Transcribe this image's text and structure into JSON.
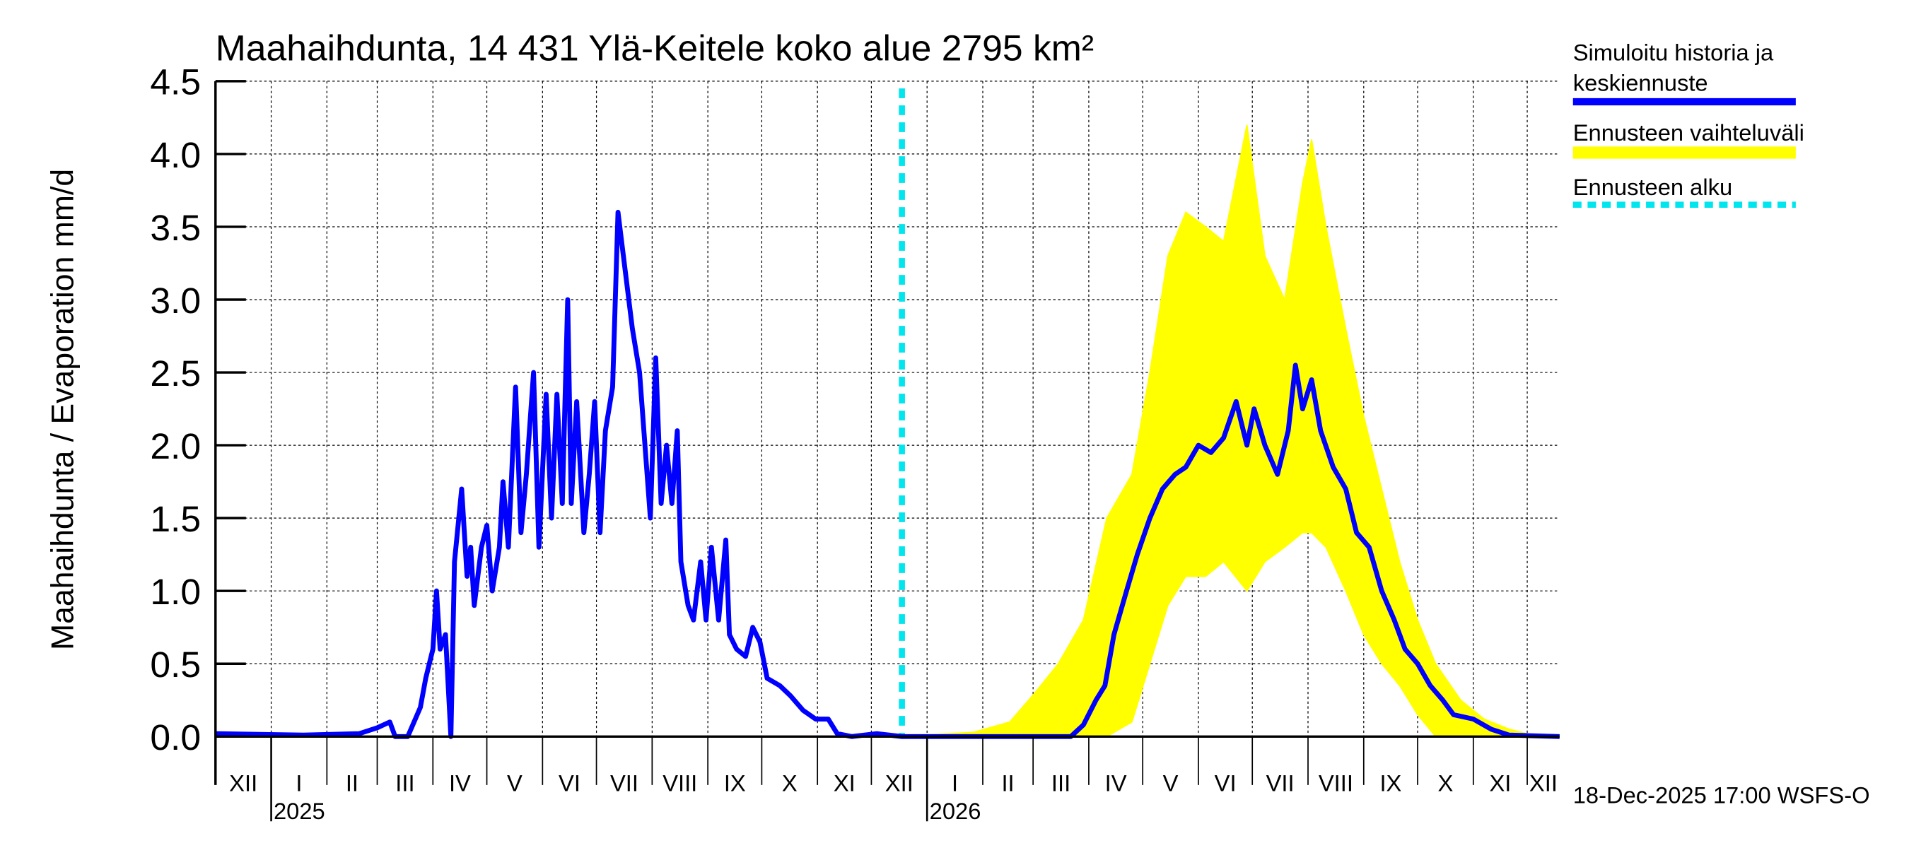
{
  "chart_data": {
    "type": "line",
    "title": "Maahaihdunta, 14 431 Ylä-Keitele koko alue 2795 km²",
    "ylabel": "Maahaihdunta / Evaporation   mm/d",
    "xlabel": "",
    "x_unit": "days since 2024-12-01",
    "xlim": [
      0,
      748
    ],
    "ylim": [
      0,
      4.5
    ],
    "yticks": [
      0.0,
      0.5,
      1.0,
      1.5,
      2.0,
      2.5,
      3.0,
      3.5,
      4.0,
      4.5
    ],
    "ytick_labels": [
      "0.0",
      "0.5",
      "1.0",
      "1.5",
      "2.0",
      "2.5",
      "3.0",
      "3.5",
      "4.0",
      "4.5"
    ],
    "grid": true,
    "months": [
      {
        "label": "XII",
        "start": 0
      },
      {
        "label": "I",
        "start": 31
      },
      {
        "label": "II",
        "start": 62
      },
      {
        "label": "III",
        "start": 90
      },
      {
        "label": "IV",
        "start": 121
      },
      {
        "label": "V",
        "start": 151
      },
      {
        "label": "VI",
        "start": 182
      },
      {
        "label": "VII",
        "start": 212
      },
      {
        "label": "VIII",
        "start": 243
      },
      {
        "label": "IX",
        "start": 274
      },
      {
        "label": "X",
        "start": 304
      },
      {
        "label": "XI",
        "start": 335
      },
      {
        "label": "XII",
        "start": 365
      },
      {
        "label": "I",
        "start": 396
      },
      {
        "label": "II",
        "start": 427
      },
      {
        "label": "III",
        "start": 455
      },
      {
        "label": "IV",
        "start": 486
      },
      {
        "label": "V",
        "start": 516
      },
      {
        "label": "VI",
        "start": 547
      },
      {
        "label": "VII",
        "start": 577
      },
      {
        "label": "VIII",
        "start": 608
      },
      {
        "label": "IX",
        "start": 639
      },
      {
        "label": "X",
        "start": 669
      },
      {
        "label": "XI",
        "start": 700
      },
      {
        "label": "XII",
        "start": 730
      }
    ],
    "years": [
      {
        "label": "2025",
        "start": 31
      },
      {
        "label": "2026",
        "start": 396
      }
    ],
    "forecast_start": 382,
    "series": [
      {
        "name": "Simuloitu historia ja keskiennuste",
        "color": "#0000ff",
        "x": [
          0,
          49,
          80,
          90,
          97,
          100,
          107,
          114,
          117,
          121,
          123,
          125,
          128,
          131,
          133,
          137,
          140,
          142,
          144,
          148,
          151,
          154,
          158,
          160,
          163,
          167,
          170,
          173,
          177,
          180,
          184,
          187,
          190,
          193,
          196,
          198,
          201,
          205,
          208,
          211,
          214,
          217,
          221,
          224,
          227,
          230,
          232,
          236,
          239,
          242,
          245,
          248,
          251,
          254,
          257,
          259,
          263,
          266,
          270,
          273,
          276,
          280,
          284,
          286,
          290,
          295,
          299,
          303,
          307,
          314,
          320,
          327,
          334,
          341,
          346,
          354,
          368,
          382,
          476,
          483,
          490,
          495,
          500,
          507,
          513,
          520,
          527,
          534,
          540,
          547,
          554,
          561,
          568,
          574,
          578,
          584,
          591,
          597,
          601,
          605,
          610,
          615,
          622,
          629,
          635,
          642,
          649,
          656,
          662,
          669,
          676,
          683,
          689,
          700,
          710,
          720,
          748
        ],
        "values": [
          0.02,
          0.01,
          0.02,
          0.06,
          0.1,
          0.0,
          0.0,
          0.2,
          0.4,
          0.6,
          1.0,
          0.6,
          0.7,
          0.0,
          1.2,
          1.7,
          1.1,
          1.3,
          0.9,
          1.3,
          1.45,
          1.0,
          1.3,
          1.75,
          1.3,
          2.4,
          1.4,
          1.8,
          2.5,
          1.3,
          2.35,
          1.5,
          2.35,
          1.6,
          3.0,
          1.6,
          2.3,
          1.4,
          1.8,
          2.3,
          1.4,
          2.1,
          2.4,
          3.6,
          3.3,
          3.0,
          2.8,
          2.5,
          2.0,
          1.5,
          2.6,
          1.6,
          2.0,
          1.6,
          2.1,
          1.2,
          0.9,
          0.8,
          1.2,
          0.8,
          1.3,
          0.8,
          1.35,
          0.7,
          0.6,
          0.55,
          0.75,
          0.65,
          0.4,
          0.35,
          0.28,
          0.18,
          0.12,
          0.12,
          0.02,
          0.0,
          0.02,
          0.0,
          0.0,
          0.08,
          0.25,
          0.35,
          0.7,
          1.0,
          1.25,
          1.5,
          1.7,
          1.8,
          1.85,
          2.0,
          1.95,
          2.05,
          2.3,
          2.0,
          2.25,
          2.0,
          1.8,
          2.1,
          2.55,
          2.25,
          2.45,
          2.1,
          1.85,
          1.7,
          1.4,
          1.3,
          1.0,
          0.8,
          0.6,
          0.5,
          0.35,
          0.25,
          0.15,
          0.12,
          0.05,
          0.01,
          0.0
        ]
      },
      {
        "name": "Ennusteen vaihteluväli",
        "color": "#ffff00",
        "type": "band",
        "x": [
          382,
          422,
          442,
          456,
          469,
          483,
          496,
          510,
          520,
          530,
          540,
          551,
          561,
          574,
          584,
          595,
          605,
          610,
          618,
          629,
          639,
          649,
          659,
          669,
          679,
          693,
          706,
          720,
          733,
          748
        ],
        "low": [
          0,
          0,
          0,
          0,
          0,
          0,
          0,
          0.1,
          0.5,
          0.9,
          1.1,
          1.1,
          1.2,
          1.0,
          1.2,
          1.3,
          1.4,
          1.4,
          1.3,
          1.0,
          0.7,
          0.5,
          0.35,
          0.15,
          0,
          0,
          0,
          0,
          0,
          0
        ],
        "high": [
          0,
          0.03,
          0.1,
          0.3,
          0.5,
          0.8,
          1.5,
          1.8,
          2.5,
          3.3,
          3.6,
          3.5,
          3.4,
          4.2,
          3.3,
          3.0,
          3.8,
          4.1,
          3.5,
          2.8,
          2.2,
          1.7,
          1.2,
          0.8,
          0.5,
          0.25,
          0.12,
          0.05,
          0.01,
          0
        ]
      },
      {
        "name": "Ennusteen alku",
        "color": "#00e5ee",
        "type": "vline"
      }
    ],
    "legend": {
      "placement": "right",
      "entries": [
        "Simuloitu historia ja",
        "keskiennuste",
        "Ennusteen vaihteluväli",
        "Ennusteen alku"
      ]
    },
    "footer": "18-Dec-2025 17:00 WSFS-O"
  }
}
